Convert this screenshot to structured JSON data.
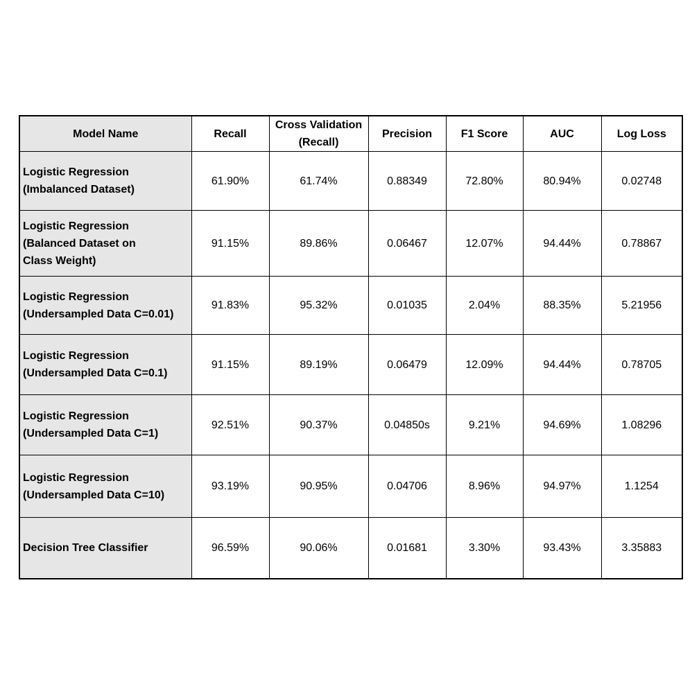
{
  "table": {
    "headers": {
      "model": "Model Name",
      "recall": "Recall",
      "cv_line1": "Cross Validation",
      "cv_line2": "(Recall)",
      "precision": "Precision",
      "f1": "F1 Score",
      "auc": "AUC",
      "log_loss": "Log Loss"
    },
    "rows": [
      {
        "model": [
          "Logistic Regression",
          "(Imbalanced Dataset)"
        ],
        "recall": "61.90%",
        "cv_recall": "61.74%",
        "precision": "0.88349",
        "f1": "72.80%",
        "auc": "80.94%",
        "log_loss": "0.02748"
      },
      {
        "model": [
          "Logistic Regression",
          "(Balanced Dataset on",
          "Class Weight)"
        ],
        "recall": "91.15%",
        "cv_recall": "89.86%",
        "precision": "0.06467",
        "f1": "12.07%",
        "auc": "94.44%",
        "log_loss": "0.78867"
      },
      {
        "model": [
          "Logistic Regression",
          "(Undersampled Data C=0.01)"
        ],
        "recall": "91.83%",
        "cv_recall": "95.32%",
        "precision": "0.01035",
        "f1": "2.04%",
        "auc": "88.35%",
        "log_loss": "5.21956"
      },
      {
        "model": [
          "Logistic Regression",
          "(Undersampled Data C=0.1)"
        ],
        "recall": "91.15%",
        "cv_recall": "89.19%",
        "precision": "0.06479",
        "f1": "12.09%",
        "auc": "94.44%",
        "log_loss": "0.78705"
      },
      {
        "model": [
          "Logistic Regression",
          "(Undersampled Data C=1)"
        ],
        "recall": "92.51%",
        "cv_recall": "90.37%",
        "precision": "0.04850s",
        "f1": "9.21%",
        "auc": "94.69%",
        "log_loss": "1.08296"
      },
      {
        "model": [
          "Logistic Regression",
          "(Undersampled Data C=10)"
        ],
        "recall": "93.19%",
        "cv_recall": "90.95%",
        "precision": "0.04706",
        "f1": "8.96%",
        "auc": "94.97%",
        "log_loss": "1.1254"
      },
      {
        "model": [
          "Decision Tree Classifier"
        ],
        "recall": "96.59%",
        "cv_recall": "90.06%",
        "precision": "0.01681",
        "f1": "3.30%",
        "auc": "93.43%",
        "log_loss": "3.35883"
      }
    ]
  },
  "colors": {
    "model_column_bg": "#e7e6e6",
    "border": "#000000",
    "text": "#000000"
  }
}
